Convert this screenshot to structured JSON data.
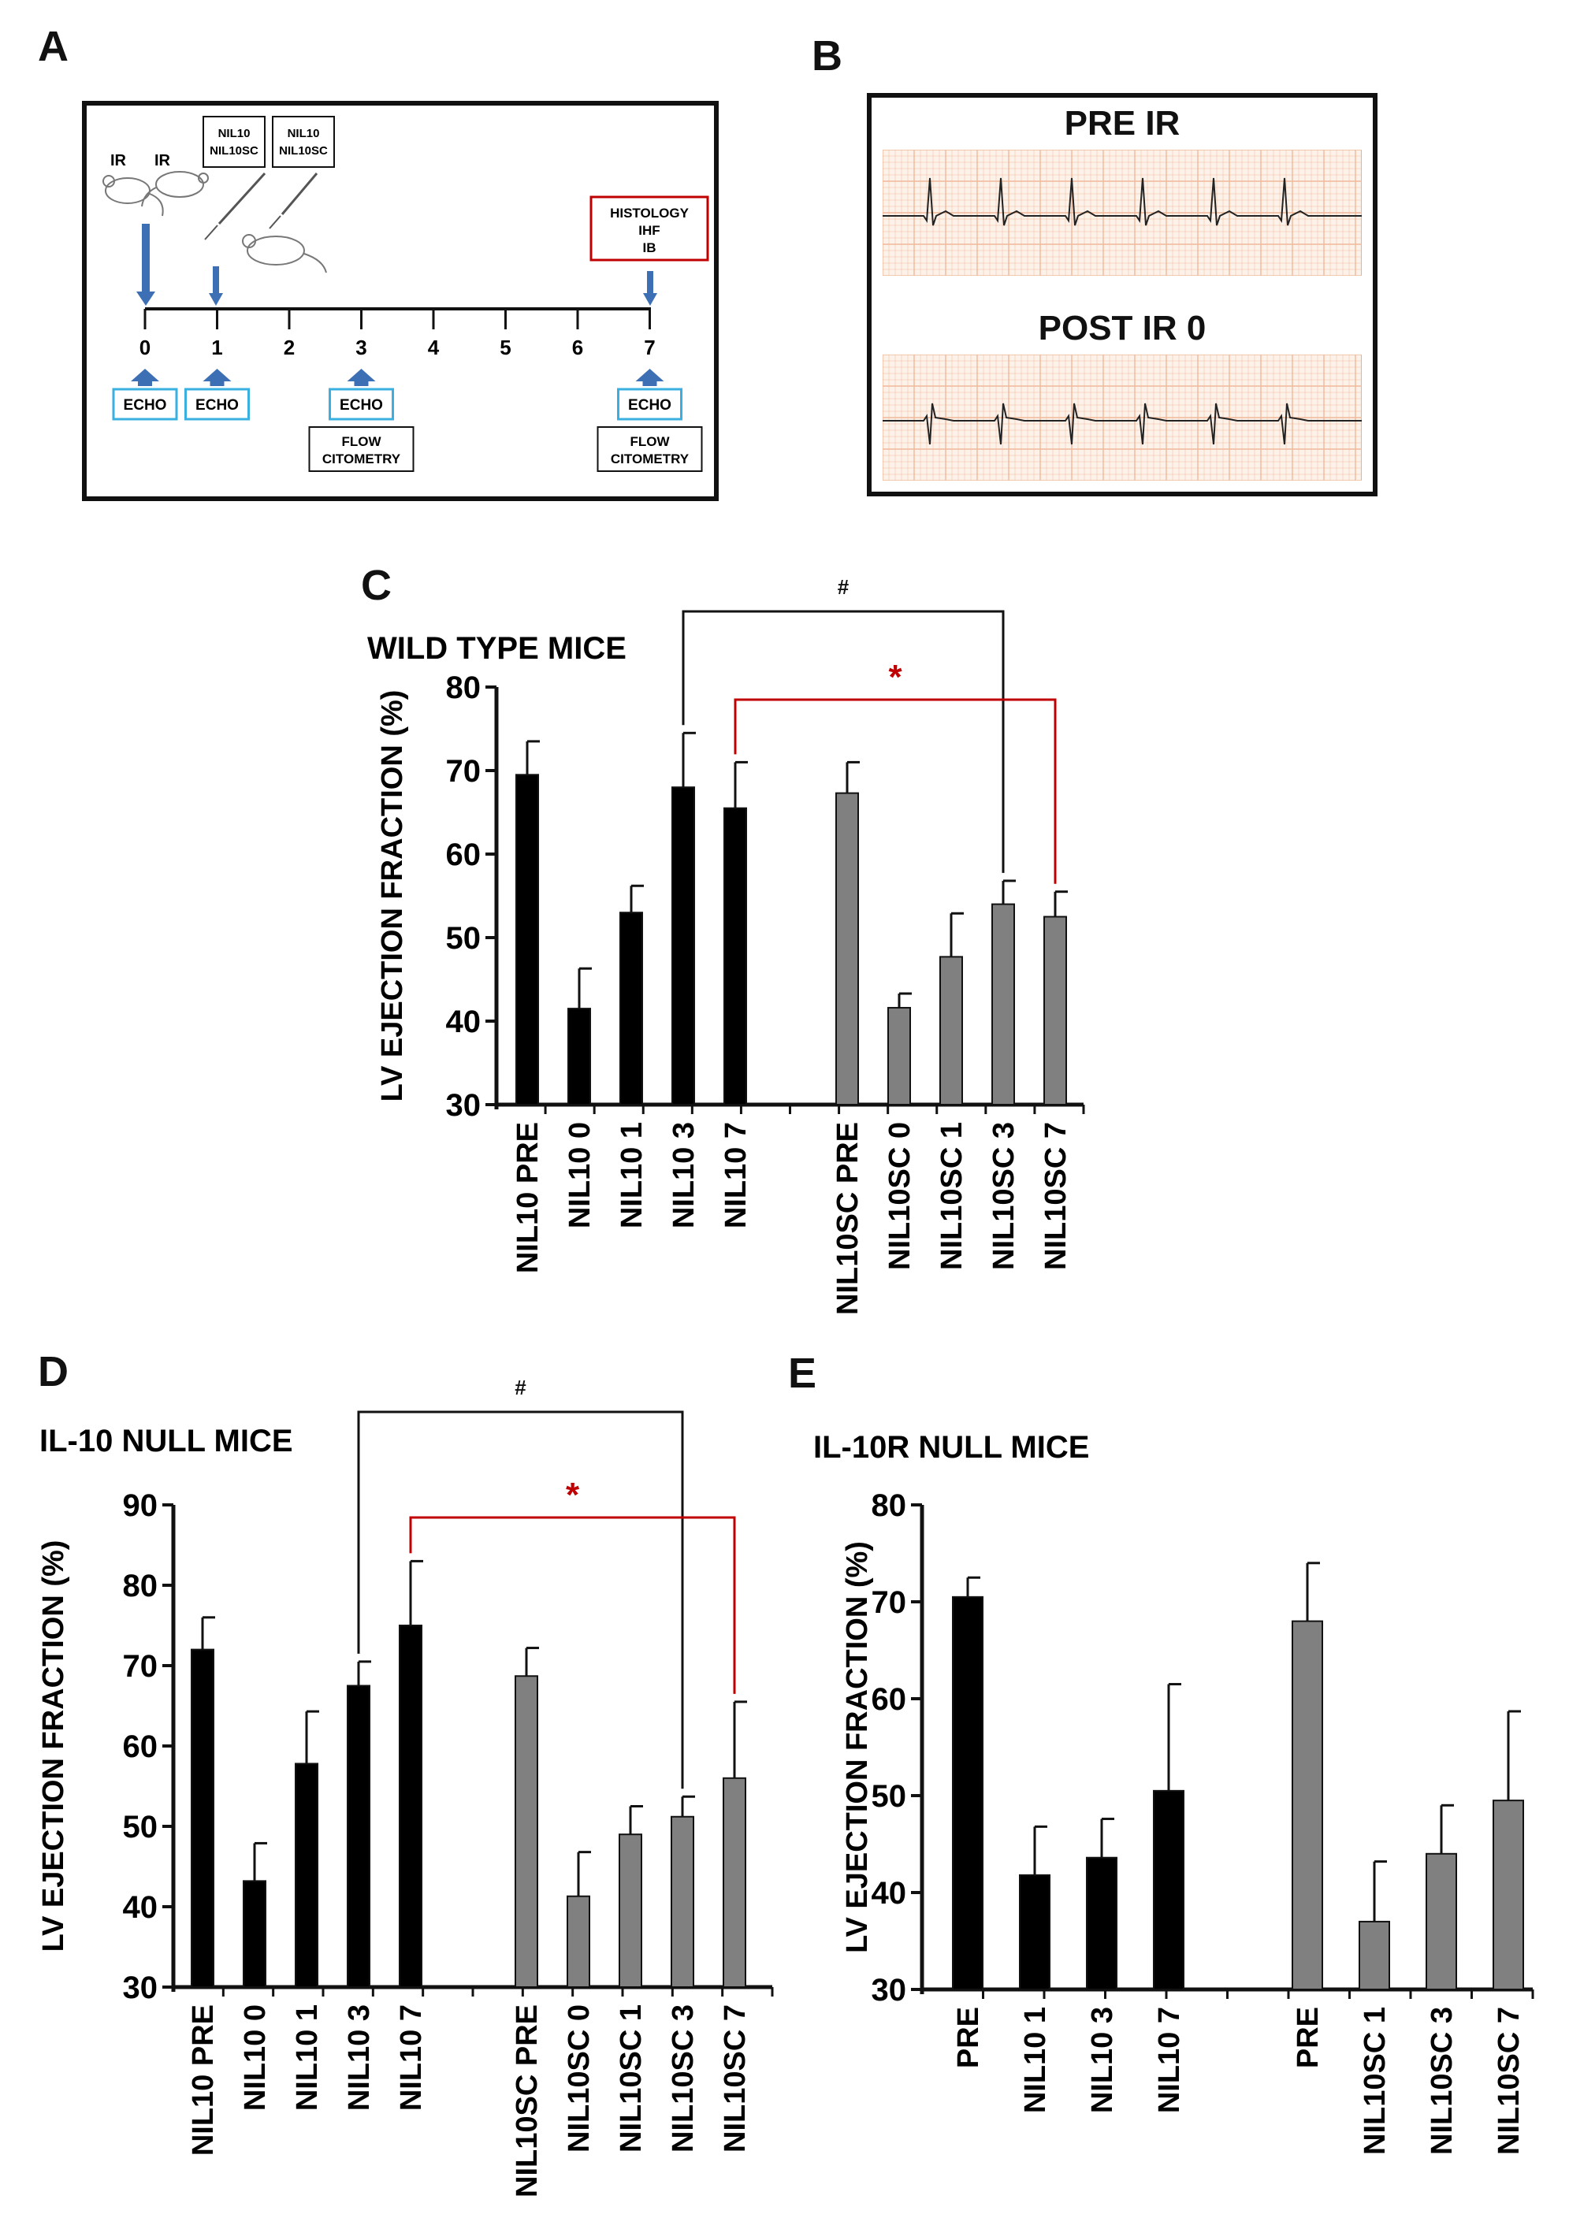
{
  "panels": {
    "a": {
      "letter": "A",
      "ir1": "IR",
      "ir2": "IR",
      "drug1": [
        "NIL10",
        "NIL10SC"
      ],
      "drug2": [
        "NIL10",
        "NIL10SC"
      ],
      "endpoint": [
        "HISTOLOGY",
        "IHF",
        "IB"
      ],
      "days": [
        "0",
        "1",
        "2",
        "3",
        "4",
        "5",
        "6",
        "7"
      ],
      "echo": "ECHO",
      "flow": [
        "FLOW",
        "CITOMETRY"
      ]
    },
    "b": {
      "letter": "B",
      "pre_label": "PRE IR",
      "post_label": "POST IR 0"
    },
    "c": {
      "letter": "C"
    },
    "d": {
      "letter": "D"
    },
    "e": {
      "letter": "E"
    }
  },
  "colors": {
    "nil10": "#000000",
    "nil10sc": "#808080",
    "sig_red": "#c00000",
    "ecg_grid": "#f0b89a"
  },
  "chart_data": [
    {
      "id": "C",
      "type": "bar",
      "title": "WILD TYPE MICE",
      "ylabel": "LV EJECTION FRACTION (%)",
      "ylim": [
        30,
        80
      ],
      "yticks": [
        30,
        40,
        50,
        60,
        70,
        80
      ],
      "categories": [
        "NIL10 PRE",
        "NIL10 0",
        "NIL10 1",
        "NIL10 3",
        "NIL10 7",
        "NIL10SC PRE",
        "NIL10SC 0",
        "NIL10SC 1",
        "NIL10SC 3",
        "NIL10SC 7"
      ],
      "values": [
        69.5,
        41.5,
        53,
        68,
        65.5,
        67.3,
        41.6,
        47.7,
        54,
        52.5
      ],
      "errors": [
        4,
        4.8,
        3.2,
        6.5,
        5.5,
        3.7,
        1.7,
        5.2,
        2.8,
        3
      ],
      "colors": [
        "black",
        "black",
        "black",
        "black",
        "black",
        "gray",
        "gray",
        "gray",
        "gray",
        "gray"
      ],
      "annotations": [
        {
          "text": "#",
          "from": "NIL10 3",
          "to": "NIL10SC 3"
        },
        {
          "text": "*",
          "from": "NIL10 7",
          "to": "NIL10SC 7"
        }
      ]
    },
    {
      "id": "D",
      "type": "bar",
      "title": "IL-10 NULL MICE",
      "ylabel": "LV EJECTION FRACTION (%)",
      "ylim": [
        30,
        90
      ],
      "yticks": [
        30,
        40,
        50,
        60,
        70,
        80,
        90
      ],
      "categories": [
        "NIL10 PRE",
        "NIL10 0",
        "NIL10 1",
        "NIL10 3",
        "NIL10 7",
        "NIL10SC PRE",
        "NIL10SC 0",
        "NIL10SC 1",
        "NIL10SC 3",
        "NIL10SC 7"
      ],
      "values": [
        72,
        43.2,
        57.8,
        67.5,
        75,
        68.7,
        41.3,
        49,
        51.2,
        56
      ],
      "errors": [
        4,
        4.7,
        6.5,
        3,
        8,
        3.5,
        5.5,
        3.5,
        2.5,
        9.5
      ],
      "colors": [
        "black",
        "black",
        "black",
        "black",
        "black",
        "gray",
        "gray",
        "gray",
        "gray",
        "gray"
      ],
      "annotations": [
        {
          "text": "#",
          "from": "NIL10 3",
          "to": "NIL10SC 3"
        },
        {
          "text": "*",
          "from": "NIL10 7",
          "to": "NIL10SC 7"
        }
      ]
    },
    {
      "id": "E",
      "type": "bar",
      "title": "IL-10R NULL MICE",
      "ylabel": "LV EJECTION FRACTION (%)",
      "ylim": [
        30,
        80
      ],
      "yticks": [
        30,
        40,
        50,
        60,
        70,
        80
      ],
      "categories": [
        "PRE",
        "NIL10 1",
        "NIL10 3",
        "NIL10 7",
        "PRE",
        "NIL10SC 1",
        "NIL10SC 3",
        "NIL10SC 7"
      ],
      "values": [
        70.5,
        41.8,
        43.6,
        50.5,
        68,
        37,
        44,
        49.5
      ],
      "errors": [
        2,
        5,
        4,
        11,
        6,
        6.2,
        5,
        9.2
      ],
      "colors": [
        "black",
        "black",
        "black",
        "black",
        "gray",
        "gray",
        "gray",
        "gray"
      ],
      "annotations": []
    }
  ]
}
